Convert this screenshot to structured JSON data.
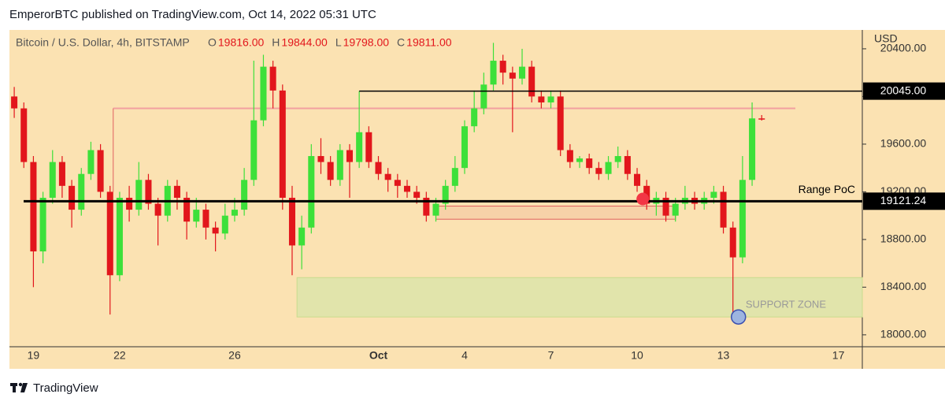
{
  "header": {
    "title": "EmperorBTC published on TradingView.com, Oct 14, 2022 05:31 UTC",
    "footer": "TradingView"
  },
  "chart_data": {
    "type": "candlestick",
    "title": "Bitcoin / U.S. Dollar, 4h, BITSTAMP",
    "legend_values": [
      {
        "prefix": "O",
        "label": "19816.00"
      },
      {
        "prefix": "H",
        "label": "19844.00"
      },
      {
        "prefix": "L",
        "label": "19798.00"
      },
      {
        "prefix": "C",
        "label": "19811.00"
      }
    ],
    "y_axis_title": "USD",
    "up_color": "#3de03a",
    "down_color": "#e2161c",
    "background": "#fbe2b2",
    "categories": [
      null,
      null,
      "19",
      null,
      null,
      null,
      null,
      null,
      null,
      null,
      null,
      "22",
      null,
      null,
      null,
      null,
      null,
      null,
      null,
      null,
      null,
      null,
      null,
      "26",
      null,
      null,
      null,
      null,
      null,
      null,
      null,
      null,
      null,
      null,
      null,
      null,
      null,
      null,
      "Oct",
      null,
      null,
      null,
      null,
      null,
      null,
      null,
      null,
      "4",
      null,
      null,
      null,
      null,
      null,
      null,
      null,
      null,
      "7",
      null,
      null,
      null,
      null,
      null,
      null,
      null,
      null,
      "10",
      null,
      null,
      null,
      null,
      null,
      null,
      null,
      null,
      "13",
      null,
      null,
      null,
      null,
      null,
      null,
      null,
      null,
      null,
      null,
      null,
      "17",
      null,
      null
    ],
    "open": [
      20000,
      19900,
      19450,
      18700,
      19150,
      19450,
      19250,
      19050,
      19350,
      19550,
      19200,
      18500,
      19150,
      19050,
      19300,
      19100,
      19000,
      19250,
      19150,
      18950,
      19050,
      18900,
      18850,
      19000,
      19050,
      19300,
      19800,
      20250,
      20050,
      19150,
      18750,
      18900,
      19500,
      19450,
      19300,
      19550,
      19450,
      19700,
      19450,
      19350,
      19300,
      19250,
      19200,
      19150,
      19000,
      19100,
      19250,
      19400,
      19750,
      19900,
      20100,
      20300,
      20200,
      20150,
      20250,
      20000,
      19950,
      20000,
      19550,
      19450,
      19480,
      19400,
      19350,
      19450,
      19500,
      19350,
      19250,
      19100,
      19150,
      19000,
      19100,
      19150,
      19100,
      19150,
      19200,
      18900,
      18650,
      19300,
      19816,
      null,
      null,
      null,
      null,
      null,
      null,
      null,
      null,
      null,
      null
    ],
    "high": [
      20080,
      19950,
      19500,
      19200,
      19550,
      19500,
      19300,
      19400,
      19620,
      19600,
      19250,
      19200,
      19250,
      19450,
      19350,
      19150,
      19300,
      19300,
      19200,
      19150,
      19100,
      18950,
      19100,
      19150,
      19400,
      20300,
      20350,
      20300,
      20100,
      19250,
      19000,
      19600,
      19650,
      19500,
      19600,
      19600,
      20045,
      19750,
      19500,
      19400,
      19350,
      19300,
      19250,
      19200,
      19150,
      19300,
      19500,
      19800,
      20050,
      20200,
      20450,
      20350,
      20250,
      20400,
      20300,
      20050,
      20050,
      20050,
      19600,
      19500,
      19520,
      19450,
      19500,
      19580,
      19550,
      19400,
      19300,
      19200,
      19200,
      19150,
      19250,
      19200,
      19200,
      19250,
      19250,
      18950,
      19500,
      19950,
      19844,
      null,
      null,
      null,
      null,
      null,
      null,
      null,
      null,
      null,
      null
    ],
    "low": [
      19820,
      19400,
      18400,
      18600,
      19100,
      19150,
      18900,
      19000,
      19300,
      19150,
      18170,
      18450,
      18950,
      19000,
      19050,
      18750,
      18950,
      19050,
      18800,
      18900,
      18800,
      18700,
      18800,
      18950,
      19000,
      19250,
      19750,
      19900,
      19050,
      18500,
      18550,
      18850,
      19350,
      19250,
      19250,
      19150,
      19400,
      19400,
      19300,
      19200,
      19150,
      19150,
      19100,
      18950,
      18950,
      19050,
      19200,
      19350,
      19700,
      19850,
      20050,
      20100,
      19700,
      20100,
      19950,
      19900,
      19900,
      19500,
      19400,
      19400,
      19350,
      19300,
      19300,
      19400,
      19300,
      19200,
      19050,
      19000,
      18950,
      18950,
      19050,
      19050,
      19050,
      19100,
      18850,
      18150,
      18600,
      19250,
      19798,
      null,
      null,
      null,
      null,
      null,
      null,
      null,
      null,
      null,
      null
    ],
    "close": [
      19900,
      19450,
      18700,
      19150,
      19450,
      19250,
      19050,
      19350,
      19550,
      19200,
      18500,
      19150,
      19050,
      19300,
      19100,
      19000,
      19250,
      19150,
      18950,
      19050,
      18900,
      18850,
      19000,
      19050,
      19300,
      19800,
      20250,
      20050,
      19150,
      18750,
      18900,
      19500,
      19450,
      19300,
      19550,
      19450,
      19700,
      19450,
      19350,
      19300,
      19250,
      19200,
      19150,
      19000,
      19100,
      19250,
      19400,
      19750,
      19900,
      20100,
      20300,
      20200,
      20150,
      20250,
      20000,
      19950,
      20000,
      19550,
      19450,
      19480,
      19400,
      19350,
      19450,
      19500,
      19350,
      19250,
      19100,
      19150,
      19000,
      19100,
      19150,
      19100,
      19150,
      19200,
      18900,
      18650,
      19300,
      19816,
      19811,
      null,
      null,
      null,
      null,
      null,
      null,
      null,
      null,
      null,
      null
    ],
    "ylim": [
      17900,
      20545
    ],
    "yticks": [
      {
        "value": 18000,
        "label": "18000.00"
      },
      {
        "value": 18400,
        "label": "18400.00"
      },
      {
        "value": 18800,
        "label": "18800.00"
      },
      {
        "value": 19200,
        "label": "19200.00"
      },
      {
        "value": 19600,
        "label": "19600.00"
      },
      {
        "value": 20000,
        "label": "20000.00"
      },
      {
        "value": 20400,
        "label": "20400.00"
      }
    ],
    "levels": [
      {
        "value": 20045,
        "label": "20045.00",
        "color": "#000000"
      },
      {
        "value": 19121.24,
        "label": "19121.24",
        "name": "Range PoC",
        "color": "#000000"
      }
    ],
    "lines": [
      {
        "value": 19900,
        "color": "#f2a0a0"
      }
    ],
    "boxes": [
      {
        "range": [
          18970,
          19080
        ],
        "color": "#e06060"
      }
    ],
    "zones": [
      {
        "range": [
          18150,
          18480
        ],
        "label": "SUPPORT ZONE",
        "color": "#d5e6a8"
      }
    ],
    "markers": [
      {
        "value": 19140,
        "color": "#f23645"
      },
      {
        "value": 18150,
        "color": "#9db4e0"
      }
    ]
  }
}
